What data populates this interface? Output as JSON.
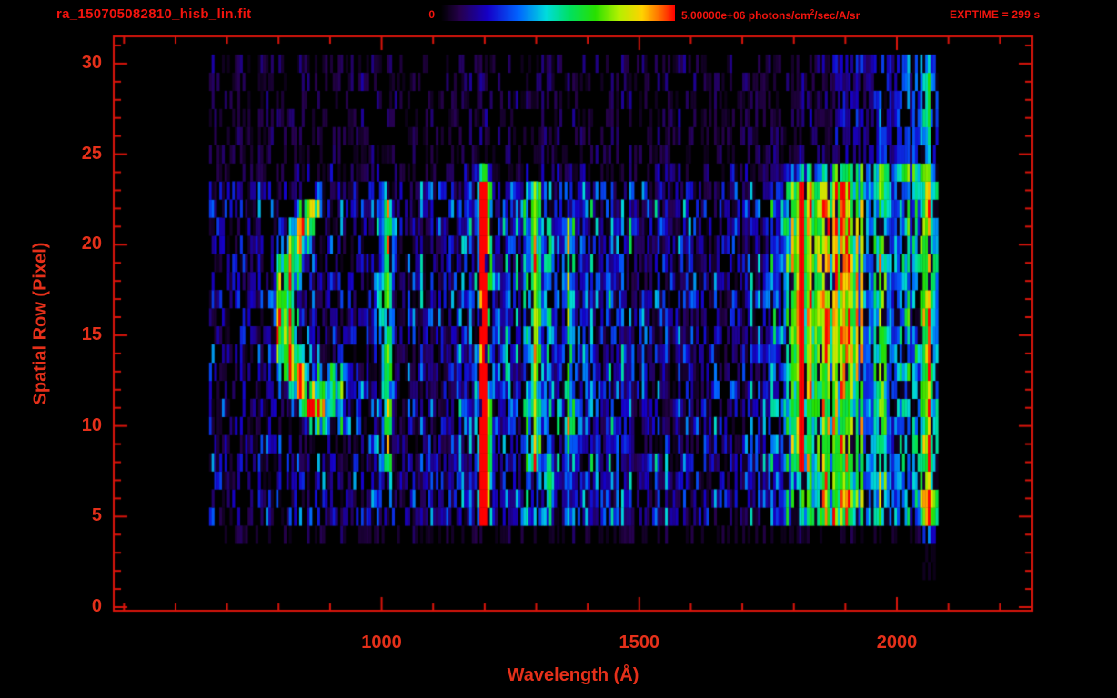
{
  "window": {
    "name": "spectral image display"
  },
  "header": {
    "title": "ra_150705082810_hisb_lin.fit",
    "colorbar_min": "0",
    "colorbar_max_pre": "5.00000e+06 photons/cm",
    "colorbar_max_sup": "2",
    "colorbar_max_post": "/sec/A/sr",
    "exptime": "EXPTIME = 299 s"
  },
  "colors": {
    "background": "#000000",
    "frame_red": "#da140b",
    "title_red": "#f3140e",
    "label_red": "#e5301a"
  },
  "chart_data": {
    "type": "heatmap",
    "title": "ra_150705082810_hisb_lin.fit",
    "xlabel": "Wavelength (Å)",
    "ylabel": "Spatial Row (Pixel)",
    "xlim": [
      480,
      2263
    ],
    "ylim": [
      -0.2,
      31.5
    ],
    "x_major_ticks": [
      1000,
      1500,
      2000
    ],
    "x_minor_step": 100,
    "y_major_ticks": [
      0,
      5,
      10,
      15,
      20,
      25,
      30
    ],
    "y_minor_step": 1,
    "exptime_seconds": 299,
    "colorbar": {
      "min_value": 0,
      "max_value": 5000000,
      "units": "photons/cm^2/sec/A/sr",
      "stops": [
        {
          "pos": 0.0,
          "color": "#000000"
        },
        {
          "pos": 0.08,
          "color": "#26004d"
        },
        {
          "pos": 0.2,
          "color": "#1500c8"
        },
        {
          "pos": 0.33,
          "color": "#0064ff"
        },
        {
          "pos": 0.45,
          "color": "#00dcdc"
        },
        {
          "pos": 0.55,
          "color": "#00e060"
        },
        {
          "pos": 0.66,
          "color": "#28e000"
        },
        {
          "pos": 0.76,
          "color": "#b4f000"
        },
        {
          "pos": 0.86,
          "color": "#ffd200"
        },
        {
          "pos": 0.94,
          "color": "#ff6400"
        },
        {
          "pos": 1.0,
          "color": "#ff0000"
        }
      ]
    },
    "data_wavelength_range": [
      665,
      2080
    ],
    "row_envelope": [
      {
        "rows": [
          0,
          3
        ],
        "level": 0.05
      },
      {
        "rows": [
          4,
          4
        ],
        "level": 0.3
      },
      {
        "rows": [
          5,
          23
        ],
        "level": 1.0
      },
      {
        "rows": [
          24,
          24
        ],
        "level": 0.6
      },
      {
        "rows": [
          25,
          30
        ],
        "level": 0.4
      }
    ],
    "features": [
      {
        "name": "airglow-arc",
        "type": "arc",
        "center": 806,
        "row_vertex": 16.5,
        "curvature": 1.8,
        "sigma": 16,
        "amp": 0.6,
        "rows": [
          11,
          22
        ],
        "boost_rows": [
          [
            13,
            16,
            1.25
          ]
        ]
      },
      {
        "name": "arc-tail",
        "type": "line",
        "center": 900,
        "sigma": 26,
        "amp": 0.42,
        "rows": [
          10,
          13
        ]
      },
      {
        "name": "emission-1005",
        "type": "line",
        "center": 1005,
        "sigma": 7,
        "amp": 0.5,
        "rows": [
          8,
          23
        ]
      },
      {
        "name": "lyman-alpha-1216",
        "type": "line",
        "center": 1197,
        "sigma": 8,
        "amp": 0.8,
        "rows": [
          5,
          24
        ],
        "boost_rows": [
          [
            6,
            11,
            1.7
          ],
          [
            18,
            23,
            1.6
          ]
        ]
      },
      {
        "name": "emission-1290",
        "type": "line",
        "center": 1292,
        "sigma": 7,
        "amp": 0.5,
        "rows": [
          8,
          23
        ]
      },
      {
        "name": "emission-1360",
        "type": "line",
        "center": 1360,
        "sigma": 6,
        "amp": 0.3,
        "rows": [
          9,
          21
        ]
      },
      {
        "name": "emission-1805",
        "type": "line",
        "center": 1808,
        "sigma": 9,
        "amp": 0.5,
        "rows": [
          8,
          23
        ]
      },
      {
        "name": "broad-band-1840",
        "type": "line",
        "center": 1845,
        "sigma": 60,
        "amp": 0.36,
        "rows": [
          5,
          24
        ],
        "boost_rows": [
          [
            14,
            23,
            1.35
          ]
        ]
      },
      {
        "name": "continuum-mid",
        "type": "line",
        "center": 1320,
        "sigma": 160,
        "amp": 0.14,
        "rows": [
          5,
          23
        ]
      },
      {
        "name": "right-band-1960",
        "type": "line",
        "center": 1960,
        "sigma": 60,
        "amp": 0.32,
        "rows": [
          5,
          24
        ]
      },
      {
        "name": "edge-column-2062",
        "type": "line",
        "center": 2062,
        "sigma": 10,
        "amp": 0.7,
        "rows": [
          1,
          30
        ],
        "boost_rows": [
          [
            4,
            6,
            1.6
          ],
          [
            27,
            29,
            1.6
          ]
        ]
      },
      {
        "name": "upper-right-glow",
        "type": "line",
        "center": 1990,
        "sigma": 70,
        "amp": 0.5,
        "rows": [
          24,
          30
        ]
      }
    ],
    "render": {
      "seed": 1150705,
      "bin_angstroms": 5,
      "noise_level": 0.32,
      "dropout_low": 0.32,
      "dropout_high": 0.05
    }
  }
}
